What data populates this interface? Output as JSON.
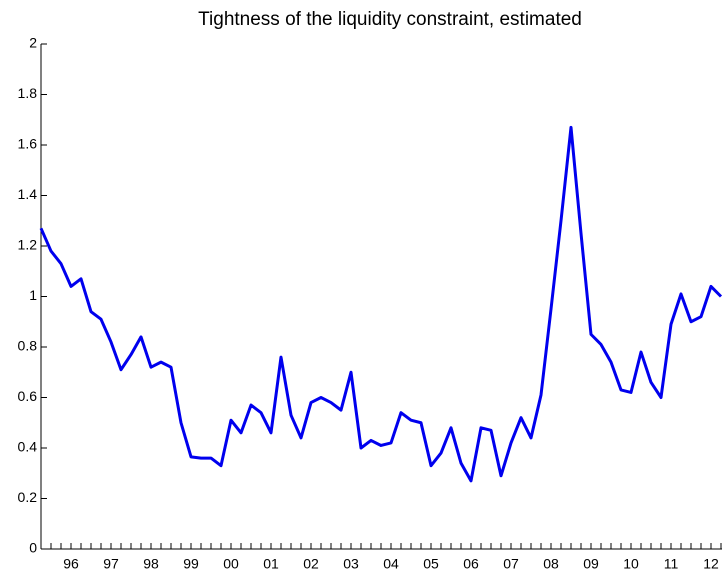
{
  "chart_data": {
    "type": "line",
    "title": "Tightness of the liquidity constraint, estimated",
    "categories": [
      null,
      null,
      null,
      "96",
      null,
      null,
      null,
      "97",
      null,
      null,
      null,
      "98",
      null,
      null,
      null,
      "99",
      null,
      null,
      null,
      "00",
      null,
      null,
      null,
      "01",
      null,
      null,
      null,
      "02",
      null,
      null,
      null,
      "03",
      null,
      null,
      null,
      "04",
      null,
      null,
      null,
      "05",
      null,
      null,
      null,
      "06",
      null,
      null,
      null,
      "07",
      null,
      null,
      null,
      "08",
      null,
      null,
      null,
      "09",
      null,
      null,
      null,
      "10",
      null,
      null,
      null,
      "11",
      null,
      null,
      null,
      "12",
      null
    ],
    "series": [
      {
        "color": "#0000ee",
        "values": [
          1.27,
          1.18,
          1.13,
          1.04,
          1.07,
          0.94,
          0.91,
          0.82,
          0.71,
          0.77,
          0.84,
          0.72,
          0.74,
          0.72,
          0.5,
          0.365,
          0.36,
          0.36,
          0.33,
          0.51,
          0.46,
          0.57,
          0.54,
          0.46,
          0.76,
          0.53,
          0.44,
          0.58,
          0.6,
          0.58,
          0.55,
          0.7,
          0.4,
          0.43,
          0.41,
          0.42,
          0.54,
          0.51,
          0.5,
          0.33,
          0.38,
          0.48,
          0.34,
          0.27,
          0.48,
          0.47,
          0.29,
          0.42,
          0.52,
          0.44,
          0.61,
          0.95,
          1.3,
          1.67,
          1.25,
          0.85,
          0.81,
          0.74,
          0.63,
          0.62,
          0.78,
          0.66,
          0.6,
          0.89,
          1.01,
          0.9,
          0.92,
          1.04,
          1.0
        ]
      }
    ],
    "ylim": [
      0,
      2
    ],
    "yticks": [
      0,
      0.2,
      0.4,
      0.6,
      0.8,
      1,
      1.2,
      1.4,
      1.6,
      1.8,
      2
    ]
  }
}
